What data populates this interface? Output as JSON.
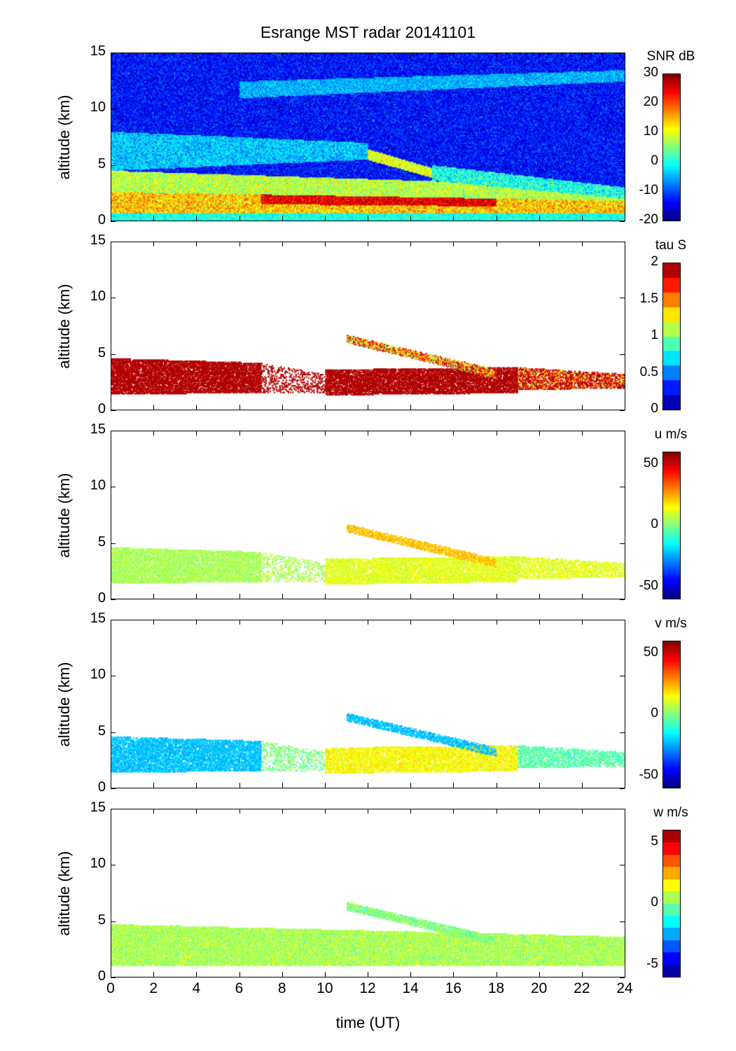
{
  "chart_data": {
    "type": "heatmap",
    "title": "Esrange MST radar 20141101",
    "xlabel": "time (UT)",
    "xlim": [
      0,
      24
    ],
    "xticks": [
      "0",
      "2",
      "4",
      "6",
      "8",
      "10",
      "12",
      "14",
      "16",
      "18",
      "20",
      "22",
      "24"
    ],
    "panels": [
      {
        "name": "snr",
        "ylabel": "altitude (km)",
        "ylim": [
          0,
          15
        ],
        "yticks": [
          "0",
          "5",
          "10",
          "15"
        ],
        "colorbar": {
          "title": "SNR dB",
          "range": [
            -20,
            30
          ],
          "ticks": [
            "-20",
            "-10",
            "0",
            "10",
            "20",
            "30"
          ],
          "tick_values": [
            -20,
            -10,
            0,
            10,
            20,
            30
          ],
          "levels": 0
        },
        "background": {
          "value": -13,
          "spread": 5
        },
        "layers": [
          {
            "t": [
              0,
              24
            ],
            "alt_start": [
              0,
              0.7
            ],
            "alt_end": [
              0,
              0.7
            ],
            "value": 0,
            "spread": 4,
            "density": 1
          },
          {
            "t": [
              0,
              24
            ],
            "alt_start": [
              0.7,
              2.6
            ],
            "alt_end": [
              0.7,
              1.8
            ],
            "value": 14,
            "spread": 7,
            "density": 1
          },
          {
            "t": [
              7,
              18
            ],
            "alt_start": [
              1.5,
              3.2
            ],
            "alt_end": [
              1.3,
              3.6
            ],
            "value": 25,
            "spread": 5,
            "density": 1
          },
          {
            "t": [
              0,
              24
            ],
            "alt_start": [
              2.6,
              4.5
            ],
            "alt_end": [
              1.8,
              3.0
            ],
            "value": 8,
            "spread": 6,
            "density": 1
          },
          {
            "t": [
              11,
              17
            ],
            "alt_start": [
              6.0,
              7.0
            ],
            "alt_end": [
              2.8,
              3.6
            ],
            "value": 10,
            "spread": 5,
            "density": 1
          },
          {
            "t": [
              15,
              24
            ],
            "alt_start": [
              3.6,
              5.0
            ],
            "alt_end": [
              2.0,
              3.0
            ],
            "value": 0,
            "spread": 6,
            "density": 1
          },
          {
            "t": [
              0,
              12
            ],
            "alt_start": [
              4.5,
              8.0
            ],
            "alt_end": [
              5.5,
              7.0
            ],
            "value": -4,
            "spread": 5,
            "density": 1
          },
          {
            "t": [
              6,
              24
            ],
            "alt_start": [
              11.0,
              12.5
            ],
            "alt_end": [
              12.5,
              13.5
            ],
            "value": -5,
            "spread": 4,
            "density": 1
          }
        ]
      },
      {
        "name": "tau",
        "ylabel": "altitude (km)",
        "ylim": [
          0,
          15
        ],
        "yticks": [
          "0",
          "5",
          "10",
          "15"
        ],
        "colorbar": {
          "title": "tau S",
          "range": [
            0,
            2
          ],
          "ticks": [
            "0",
            "0.5",
            "1",
            "1.5",
            "2"
          ],
          "tick_values": [
            0,
            0.5,
            1,
            1.5,
            2
          ],
          "levels": 10
        },
        "layers": [
          {
            "t": [
              0,
              7
            ],
            "alt_start": [
              1.4,
              4.6
            ],
            "alt_end": [
              1.5,
              4.2
            ],
            "value": 2,
            "spread": 0,
            "density": 0.85
          },
          {
            "t": [
              7,
              10
            ],
            "alt_start": [
              1.5,
              4.2
            ],
            "alt_end": [
              1.5,
              3.2
            ],
            "value": 2,
            "spread": 0,
            "density": 0.3
          },
          {
            "t": [
              10,
              19
            ],
            "alt_start": [
              1.3,
              3.6
            ],
            "alt_end": [
              1.5,
              3.8
            ],
            "value": 2,
            "spread": 0,
            "density": 0.85
          },
          {
            "t": [
              19,
              24
            ],
            "alt_start": [
              1.8,
              3.8
            ],
            "alt_end": [
              1.9,
              3.2
            ],
            "value": 1.8,
            "spread": 0.6,
            "density": 0.7
          },
          {
            "t": [
              11,
              18
            ],
            "alt_start": [
              6.0,
              6.7
            ],
            "alt_end": [
              2.8,
              3.6
            ],
            "value": 1.5,
            "spread": 0.6,
            "density": 0.8
          }
        ]
      },
      {
        "name": "u",
        "ylabel": "altitude (km)",
        "ylim": [
          0,
          15
        ],
        "yticks": [
          "0",
          "5",
          "10",
          "15"
        ],
        "colorbar": {
          "title": "u m/s",
          "range": [
            -60,
            60
          ],
          "ticks": [
            "-50",
            "0",
            "50"
          ],
          "tick_values": [
            -50,
            0,
            50
          ],
          "levels": 0
        },
        "layers": [
          {
            "t": [
              0,
              7
            ],
            "alt_start": [
              1.4,
              4.6
            ],
            "alt_end": [
              1.5,
              4.2
            ],
            "value": 5,
            "spread": 5,
            "density": 0.8
          },
          {
            "t": [
              7,
              10
            ],
            "alt_start": [
              1.5,
              4.2
            ],
            "alt_end": [
              1.5,
              3.2
            ],
            "value": 5,
            "spread": 5,
            "density": 0.3
          },
          {
            "t": [
              10,
              19
            ],
            "alt_start": [
              1.3,
              3.6
            ],
            "alt_end": [
              1.5,
              3.8
            ],
            "value": 12,
            "spread": 6,
            "density": 0.8
          },
          {
            "t": [
              19,
              24
            ],
            "alt_start": [
              1.8,
              3.8
            ],
            "alt_end": [
              1.9,
              3.2
            ],
            "value": 12,
            "spread": 5,
            "density": 0.6
          },
          {
            "t": [
              11,
              18
            ],
            "alt_start": [
              6.0,
              6.7
            ],
            "alt_end": [
              2.8,
              3.6
            ],
            "value": 22,
            "spread": 5,
            "density": 0.75
          }
        ]
      },
      {
        "name": "v",
        "ylabel": "altitude (km)",
        "ylim": [
          0,
          15
        ],
        "yticks": [
          "0",
          "5",
          "10",
          "15"
        ],
        "colorbar": {
          "title": "v m/s",
          "range": [
            -60,
            60
          ],
          "ticks": [
            "-50",
            "0",
            "50"
          ],
          "tick_values": [
            -50,
            0,
            50
          ],
          "levels": 0
        },
        "layers": [
          {
            "t": [
              0,
              7
            ],
            "alt_start": [
              1.4,
              4.6
            ],
            "alt_end": [
              1.5,
              4.2
            ],
            "value": -22,
            "spread": 5,
            "density": 0.8
          },
          {
            "t": [
              7,
              10
            ],
            "alt_start": [
              1.5,
              4.2
            ],
            "alt_end": [
              1.5,
              3.2
            ],
            "value": 0,
            "spread": 8,
            "density": 0.3
          },
          {
            "t": [
              10,
              19
            ],
            "alt_start": [
              1.3,
              3.6
            ],
            "alt_end": [
              1.5,
              3.8
            ],
            "value": 15,
            "spread": 6,
            "density": 0.8
          },
          {
            "t": [
              19,
              24
            ],
            "alt_start": [
              1.8,
              3.8
            ],
            "alt_end": [
              1.9,
              3.2
            ],
            "value": -5,
            "spread": 6,
            "density": 0.6
          },
          {
            "t": [
              11,
              18
            ],
            "alt_start": [
              6.0,
              6.7
            ],
            "alt_end": [
              2.8,
              3.6
            ],
            "value": -22,
            "spread": 5,
            "density": 0.75
          }
        ]
      },
      {
        "name": "w",
        "ylabel": "altitude (km)",
        "ylim": [
          0,
          15
        ],
        "yticks": [
          "0",
          "5",
          "10",
          "15"
        ],
        "colorbar": {
          "title": "w m/s",
          "range": [
            -6,
            6
          ],
          "ticks": [
            "-5",
            "0",
            "5"
          ],
          "tick_values": [
            -5,
            0,
            5
          ],
          "levels": 12
        },
        "layers": [
          {
            "t": [
              0,
              24
            ],
            "alt_start": [
              1.0,
              4.7
            ],
            "alt_end": [
              1.0,
              3.6
            ],
            "value": 0.5,
            "spread": 0.7,
            "density": 0.9
          },
          {
            "t": [
              11,
              18
            ],
            "alt_start": [
              6.0,
              6.7
            ],
            "alt_end": [
              2.8,
              3.6
            ],
            "value": 0,
            "spread": 0.8,
            "density": 0.8
          }
        ]
      }
    ]
  }
}
